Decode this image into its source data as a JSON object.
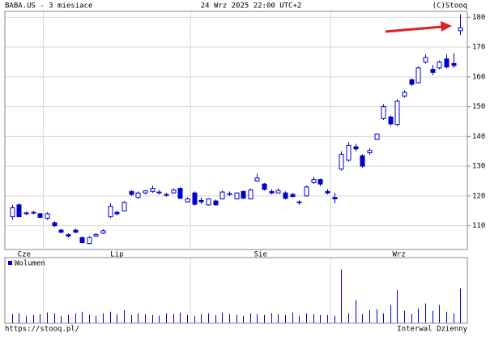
{
  "chart_data": {
    "type": "candlestick",
    "title": "BABA.US - 3 miesiace",
    "subtitle": "24 Wrz 2025 22:00 UTC+2",
    "source": "(C)Stooq",
    "url": "https://stooq.pl/",
    "interval": "Interwal Dzienny",
    "color": "#0000cc",
    "grid": true,
    "xlim": [
      -1,
      65
    ],
    "xticks": [
      {
        "value": -1,
        "label": "Cze"
      },
      {
        "value": 4.5,
        "label": "Lip"
      },
      {
        "value": 25.5,
        "label": "Sie"
      },
      {
        "value": 45.5,
        "label": "Wrz"
      }
    ],
    "ylim": [
      102,
      182
    ],
    "yticks": [
      110,
      120,
      130,
      140,
      150,
      160,
      170,
      180
    ],
    "open": [
      113,
      117,
      114,
      114.5,
      114,
      112.5,
      111,
      108.5,
      107,
      108.5,
      106,
      104,
      106.5,
      107.5,
      113,
      114.5,
      115,
      121.5,
      119.5,
      121,
      121.5,
      121,
      120.5,
      121,
      122.5,
      118,
      121,
      118.5,
      117,
      118.3,
      119,
      120.5,
      119,
      121.5,
      119,
      125,
      124,
      121.5,
      121,
      121,
      120.5,
      118,
      120,
      124.5,
      125.5,
      121.5,
      119.5,
      129,
      132,
      136.5,
      133.5,
      134.5,
      139,
      146,
      146.5,
      144,
      153.5,
      159,
      158,
      165,
      162.5,
      163,
      166,
      164.5,
      175.5
    ],
    "high": [
      117,
      117.5,
      114.8,
      115,
      114.3,
      114.5,
      111.5,
      109,
      107.5,
      109,
      106.3,
      106.5,
      107.5,
      108.8,
      117.5,
      115,
      118.3,
      122,
      121.5,
      122,
      123.5,
      122,
      121,
      122.5,
      123,
      119.5,
      121.5,
      119.5,
      119.2,
      118.8,
      121.8,
      121.5,
      121.2,
      121.8,
      122.5,
      127.5,
      124.3,
      122.3,
      122.5,
      121.5,
      121,
      118.5,
      123.5,
      126.5,
      125.8,
      122.3,
      121,
      135,
      138,
      137.5,
      134,
      136,
      141,
      150.8,
      147,
      152.5,
      155.5,
      159.5,
      163.5,
      167.5,
      164,
      165.5,
      167.5,
      168,
      181
    ],
    "low": [
      112,
      113,
      113.6,
      113.8,
      112.5,
      112,
      109.5,
      107.5,
      106,
      107.5,
      104,
      103.8,
      106.3,
      107.2,
      112.5,
      113.5,
      114.8,
      120,
      119,
      120.5,
      121,
      120.5,
      119.8,
      120.8,
      119,
      117.8,
      116.8,
      117.3,
      116.8,
      116.8,
      118.8,
      120,
      118.8,
      119,
      118.8,
      124.8,
      121.8,
      120.5,
      120.8,
      118.8,
      119.5,
      117,
      119.8,
      124,
      123.3,
      120.5,
      117.5,
      128.5,
      131.5,
      135,
      129.5,
      133.8,
      138.8,
      145.5,
      143.5,
      143.5,
      153,
      157,
      157.8,
      164.5,
      160.5,
      162.5,
      162.8,
      163,
      174
    ],
    "close": [
      116,
      113,
      114.3,
      114.2,
      112.8,
      114,
      110,
      107.8,
      106.5,
      107.8,
      104.3,
      106,
      107,
      108.3,
      116.5,
      114,
      117.8,
      120.5,
      121,
      121.7,
      122.5,
      121.3,
      120.2,
      122,
      119.2,
      119,
      117.2,
      118,
      119,
      117,
      121.3,
      120.8,
      121,
      119.2,
      122,
      126,
      122.2,
      121,
      121.8,
      119.2,
      119.8,
      117.8,
      123,
      125.5,
      124,
      121,
      119,
      134,
      137,
      135.8,
      130,
      135.3,
      140.8,
      150,
      144.2,
      151.8,
      154.8,
      157.5,
      163,
      166.5,
      161.5,
      165,
      163.3,
      163.8,
      176.5
    ],
    "volume": {
      "name": "Wolumen",
      "values": [
        11,
        12,
        9,
        10,
        11,
        13,
        12,
        9,
        10,
        12,
        14,
        10,
        9,
        12,
        14,
        11,
        16,
        10,
        12,
        11,
        10,
        9,
        12,
        11,
        13,
        10,
        9,
        11,
        12,
        10,
        13,
        11,
        10,
        9,
        12,
        11,
        10,
        12,
        11,
        10,
        13,
        9,
        12,
        11,
        10,
        10,
        9,
        65,
        12,
        28,
        11,
        16,
        17,
        12,
        22,
        40,
        15,
        11,
        18,
        24,
        15,
        22,
        14,
        12,
        42
      ]
    }
  }
}
